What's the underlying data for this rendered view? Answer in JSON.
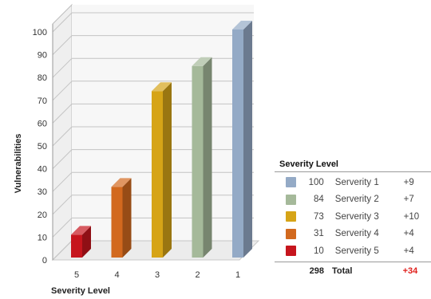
{
  "chart_data": {
    "type": "bar",
    "xlabel": "Severity Level",
    "ylabel": "Vulnerabilities",
    "ylim": [
      0,
      100
    ],
    "yticks": [
      0,
      10,
      20,
      30,
      40,
      50,
      60,
      70,
      80,
      90,
      100
    ],
    "categories": [
      "5",
      "4",
      "3",
      "2",
      "1"
    ],
    "values": [
      10,
      31,
      73,
      84,
      100
    ],
    "colors": [
      "#c6151d",
      "#d2691e",
      "#d6a417",
      "#a5b99a",
      "#94aac6"
    ],
    "grid": true
  },
  "legend": {
    "title": "Severity Level",
    "items": [
      {
        "value": "100",
        "name": "Serverity 1",
        "change": "+9",
        "color": "#94aac6"
      },
      {
        "value": "84",
        "name": "Serverity 2",
        "change": "+7",
        "color": "#a5b99a"
      },
      {
        "value": "73",
        "name": "Serverity 3",
        "change": "+10",
        "color": "#d6a417"
      },
      {
        "value": "31",
        "name": "Serverity 4",
        "change": "+4",
        "color": "#d2691e"
      },
      {
        "value": "10",
        "name": "Serverity 5",
        "change": "+4",
        "color": "#c6151d"
      }
    ],
    "total": {
      "value": "298",
      "label": "Total",
      "change": "+34"
    }
  }
}
